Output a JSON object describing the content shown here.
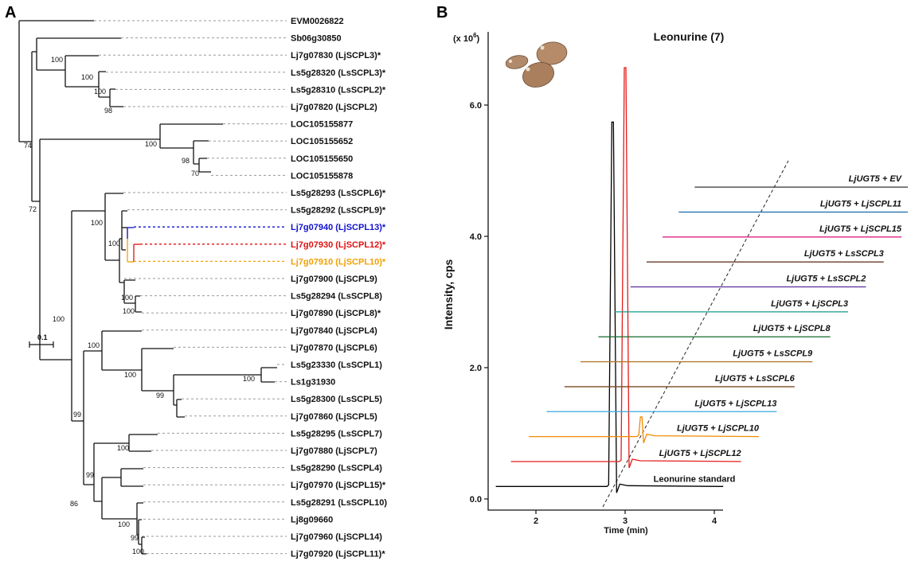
{
  "panel_a": {
    "label": "A",
    "scale_label": "0.1",
    "leaves": [
      {
        "name": "EVM0026822",
        "color": "#111111",
        "dashed": false
      },
      {
        "name": "Sb06g30850",
        "color": "#111111",
        "dashed": false
      },
      {
        "name": "Lj7g07830 (LjSCPL3)*",
        "color": "#111111",
        "dashed": false
      },
      {
        "name": "Ls5g28320 (LsSCPL3)*",
        "color": "#111111",
        "dashed": false
      },
      {
        "name": "Ls5g28310 (LsSCPL2)*",
        "color": "#111111",
        "dashed": false
      },
      {
        "name": "Lj7g07820 (LjSCPL2)",
        "color": "#111111",
        "dashed": false
      },
      {
        "name": "LOC105155877",
        "color": "#111111",
        "dashed": false
      },
      {
        "name": "LOC105155652",
        "color": "#111111",
        "dashed": false
      },
      {
        "name": "LOC105155650",
        "color": "#111111",
        "dashed": false
      },
      {
        "name": "LOC105155878",
        "color": "#111111",
        "dashed": false
      },
      {
        "name": "Ls5g28293 (LsSCPL6)*",
        "color": "#111111",
        "dashed": false
      },
      {
        "name": "Ls5g28292 (LsSCPL9)*",
        "color": "#111111",
        "dashed": false
      },
      {
        "name": "Lj7g07940 (LjSCPL13)*",
        "color": "#1010d0",
        "dashed": true
      },
      {
        "name": "Lj7g07930 (LjSCPL12)*",
        "color": "#e01010",
        "dashed": true
      },
      {
        "name": "Lj7g07910 (LjSCPL10)*",
        "color": "#f0a000",
        "dashed": true
      },
      {
        "name": "Lj7g07900 (LjSCPL9)",
        "color": "#111111",
        "dashed": false
      },
      {
        "name": "Ls5g28294 (LsSCPL8)",
        "color": "#111111",
        "dashed": false
      },
      {
        "name": "Lj7g07890 (LjSCPL8)*",
        "color": "#111111",
        "dashed": false
      },
      {
        "name": "Lj7g07840 (LjSCPL4)",
        "color": "#111111",
        "dashed": false
      },
      {
        "name": "Lj7g07870 (LjSCPL6)",
        "color": "#111111",
        "dashed": false
      },
      {
        "name": "Ls5g23330 (LsSCPL1)",
        "color": "#111111",
        "dashed": false
      },
      {
        "name": "Ls1g31930",
        "color": "#111111",
        "dashed": false
      },
      {
        "name": "Ls5g28300 (LsSCPL5)",
        "color": "#111111",
        "dashed": false
      },
      {
        "name": "Lj7g07860 (LjSCPL5)",
        "color": "#111111",
        "dashed": false
      },
      {
        "name": "Ls5g28295 (LsSCPL7)",
        "color": "#111111",
        "dashed": false
      },
      {
        "name": "Lj7g07880 (LjSCPL7)",
        "color": "#111111",
        "dashed": false
      },
      {
        "name": "Ls5g28290 (LsSCPL4)",
        "color": "#111111",
        "dashed": false
      },
      {
        "name": "Lj7g07970 (LjSCPL15)*",
        "color": "#111111",
        "dashed": false
      },
      {
        "name": "Ls5g28291 (LsSCPL10)",
        "color": "#111111",
        "dashed": false
      },
      {
        "name": "Lj8g09660",
        "color": "#111111",
        "dashed": false
      },
      {
        "name": "Lj7g07960 (LjSCPL14)",
        "color": "#111111",
        "dashed": false
      },
      {
        "name": "Lj7g07920 (LjSCPL11)*",
        "color": "#111111",
        "dashed": false
      }
    ],
    "bootstrap_values": [
      "100",
      "100",
      "100",
      "98",
      "74",
      "100",
      "98",
      "70",
      "72",
      "100",
      "100",
      "100",
      "100",
      "100",
      "100",
      "100",
      "100",
      "99",
      "99",
      "100",
      "99",
      "86",
      "100",
      "99",
      "100"
    ]
  },
  "panel_b": {
    "label": "B",
    "title": "Leonurine (7)",
    "y_multiplier": "(x 10",
    "y_multiplier_exp": "6",
    "y_multiplier_close": ")",
    "ylabel": "Intensity, cps",
    "xlabel": "Time (min)",
    "standard_label": "Leonurine standard"
  },
  "chart_data": {
    "type": "line",
    "title": "Leonurine (7)",
    "xlabel": "Time (min)",
    "ylabel": "Intensity, cps",
    "x_ticks": [
      "2",
      "3",
      "4"
    ],
    "y_ticks": [
      "0.0",
      "2.0",
      "4.0",
      "6.0"
    ],
    "xlim": [
      1.5,
      4.2
    ],
    "ylim": [
      -0.1,
      7.0
    ],
    "series": [
      {
        "name": "Leonurine standard",
        "color": "#000000",
        "baseline": 0.19,
        "x_start": 1.55,
        "x_end": 4.1,
        "peak_time": 2.86,
        "peak_height": 5.55
      },
      {
        "name": "LjUGT5 + LjSCPL12",
        "color": "#e51b1b",
        "baseline": 0.57,
        "x_start": 1.72,
        "x_end": 4.3,
        "peak_time": 3.0,
        "peak_height": 6.0
      },
      {
        "name": "LjUGT5 + LjSCPL10",
        "color": "#f28c00",
        "baseline": 0.95,
        "x_start": 1.92,
        "x_end": 4.5,
        "peak_time": 3.18,
        "peak_height": 0.3
      },
      {
        "name": "LjUGT5 + LjSCPL13",
        "color": "#3aa7dd",
        "baseline": 1.33,
        "x_start": 2.12,
        "x_end": 4.7,
        "peak_time": null,
        "peak_height": 0
      },
      {
        "name": "LjUGT5 + LsSCPL6",
        "color": "#7a4b1e",
        "baseline": 1.71,
        "x_start": 2.32,
        "x_end": 4.9,
        "peak_time": null,
        "peak_height": 0
      },
      {
        "name": "LjUGT5 + LsSCPL9",
        "color": "#b07a2a",
        "baseline": 2.09,
        "x_start": 2.5,
        "x_end": 5.1,
        "peak_time": null,
        "peak_height": 0
      },
      {
        "name": "LjUGT5 + LjSCPL8",
        "color": "#116a2a",
        "baseline": 2.47,
        "x_start": 2.7,
        "x_end": 5.3,
        "peak_time": null,
        "peak_height": 0
      },
      {
        "name": "LjUGT5 + LjSCPL3",
        "color": "#159a8c",
        "baseline": 2.85,
        "x_start": 2.88,
        "x_end": 5.5,
        "peak_time": null,
        "peak_height": 0
      },
      {
        "name": "LjUGT5 + LsSCPL2",
        "color": "#5b2aa0",
        "baseline": 3.23,
        "x_start": 3.06,
        "x_end": 5.7,
        "peak_time": null,
        "peak_height": 0
      },
      {
        "name": "LjUGT5 + LsSCPL3",
        "color": "#6b3a2a",
        "baseline": 3.61,
        "x_start": 3.24,
        "x_end": 5.9,
        "peak_time": null,
        "peak_height": 0
      },
      {
        "name": "LjUGT5 + LjSCPL15",
        "color": "#e0208a",
        "baseline": 3.99,
        "x_start": 3.42,
        "x_end": 6.1,
        "peak_time": null,
        "peak_height": 0
      },
      {
        "name": "LjUGT5 + LjSCPL11",
        "color": "#1a6aa8",
        "baseline": 4.37,
        "x_start": 3.6,
        "x_end": 6.3,
        "peak_time": null,
        "peak_height": 0
      },
      {
        "name": "LjUGT5 + EV",
        "color": "#333333",
        "baseline": 4.75,
        "x_start": 3.78,
        "x_end": 6.5,
        "peak_time": null,
        "peak_height": 0
      }
    ]
  }
}
